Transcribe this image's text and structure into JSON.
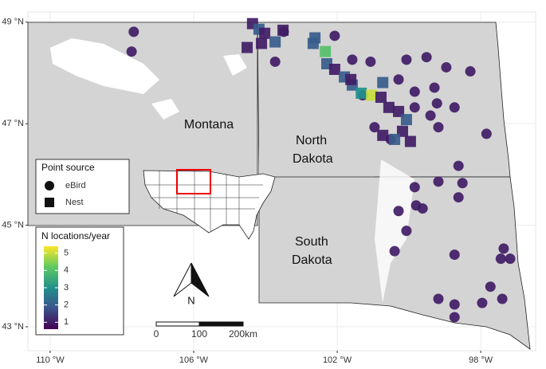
{
  "chart_data": {
    "type": "map",
    "xlim": [
      -110.62,
      -96.47
    ],
    "ylim": [
      42.53,
      49.2
    ],
    "xticks": [
      {
        "value": -110,
        "label": "110 °W"
      },
      {
        "value": -106,
        "label": "106 °W"
      },
      {
        "value": -102,
        "label": "102 °W"
      },
      {
        "value": -98,
        "label": "98 °W"
      }
    ],
    "yticks": [
      {
        "value": 43,
        "label": "43 °N"
      },
      {
        "value": 45,
        "label": "45 °N"
      },
      {
        "value": 47,
        "label": "47 °N"
      },
      {
        "value": 49,
        "label": "49 °N"
      }
    ],
    "grid": true,
    "state_labels": {
      "montana": "Montana",
      "north_dakota": [
        "North",
        "Dakota"
      ],
      "south_dakota": [
        "South",
        "Dakota"
      ]
    },
    "shape_legend_title": "Point source",
    "series": [
      {
        "name": "eBird",
        "shape": "circle",
        "x": [
          -107.67,
          -107.73,
          -103.49,
          -103.73,
          -102.07,
          -101.58,
          -101.07,
          -100.07,
          -99.51,
          -98.96,
          -98.29,
          -100.29,
          -99.84,
          -99.29,
          -99.22,
          -98.73,
          -99.84,
          -99.4,
          -99.18,
          -97.84,
          -100.96,
          -100.51,
          -98.62,
          -99.18,
          -99.84,
          -99.8,
          -98.51,
          -98.62,
          -100.29,
          -99.62,
          -100.07,
          -100.4,
          -98.73,
          -97.36,
          -97.44,
          -97.18,
          -97.73,
          -99.18,
          -98.73,
          -97.96,
          -97.4,
          -98.73,
          -101.29
        ],
        "y": [
          48.81,
          48.42,
          48.81,
          48.22,
          48.73,
          48.26,
          48.22,
          48.26,
          48.31,
          48.11,
          48.03,
          47.87,
          47.63,
          47.71,
          47.4,
          47.32,
          47.32,
          47.16,
          46.93,
          46.8,
          46.93,
          46.69,
          46.17,
          45.86,
          45.75,
          45.39,
          45.83,
          45.55,
          45.28,
          45.33,
          44.89,
          44.49,
          44.42,
          44.54,
          44.34,
          44.34,
          43.79,
          43.55,
          43.44,
          43.47,
          43.55,
          43.19,
          47.56
        ],
        "n": [
          1,
          1,
          1,
          1,
          1,
          1,
          1,
          1,
          1,
          1,
          1,
          1,
          1,
          1,
          1,
          1,
          1,
          1,
          1,
          1,
          1,
          1,
          1,
          1,
          1,
          1,
          1,
          1,
          1,
          1,
          1,
          1,
          1,
          1,
          1,
          1,
          1,
          1,
          1,
          1,
          1,
          1,
          1
        ]
      },
      {
        "name": "Nest",
        "shape": "square",
        "x": [
          -104.36,
          -104.18,
          -104.02,
          -104.51,
          -104.11,
          -103.73,
          -103.51,
          -102.67,
          -102.62,
          -102.33,
          -102.29,
          -102.07,
          -101.8,
          -101.58,
          -101.33,
          -101.04,
          -100.78,
          -100.73,
          -100.56,
          -100.29,
          -100.07,
          -100.18,
          -100.4,
          -99.96,
          -100.73,
          -101.62
        ],
        "y": [
          48.97,
          48.86,
          48.78,
          48.5,
          48.58,
          48.61,
          48.84,
          48.58,
          48.69,
          48.42,
          48.18,
          48.07,
          47.92,
          47.76,
          47.6,
          47.56,
          47.52,
          47.81,
          47.32,
          47.24,
          47.08,
          46.85,
          46.69,
          46.65,
          46.77,
          47.87
        ],
        "n": [
          1,
          2,
          1,
          1,
          1,
          2,
          1,
          2,
          2,
          4,
          2,
          1,
          2,
          2,
          3,
          5,
          1,
          2,
          1,
          1,
          2,
          1,
          2,
          1,
          1,
          1
        ]
      }
    ],
    "colorbar": {
      "title": "N locations/year",
      "lim": [
        0.6,
        5.4
      ],
      "ticks": [
        1,
        2,
        3,
        4,
        5
      ]
    },
    "north_label": "N",
    "scale_labels": [
      "0",
      "100",
      "200km"
    ]
  }
}
